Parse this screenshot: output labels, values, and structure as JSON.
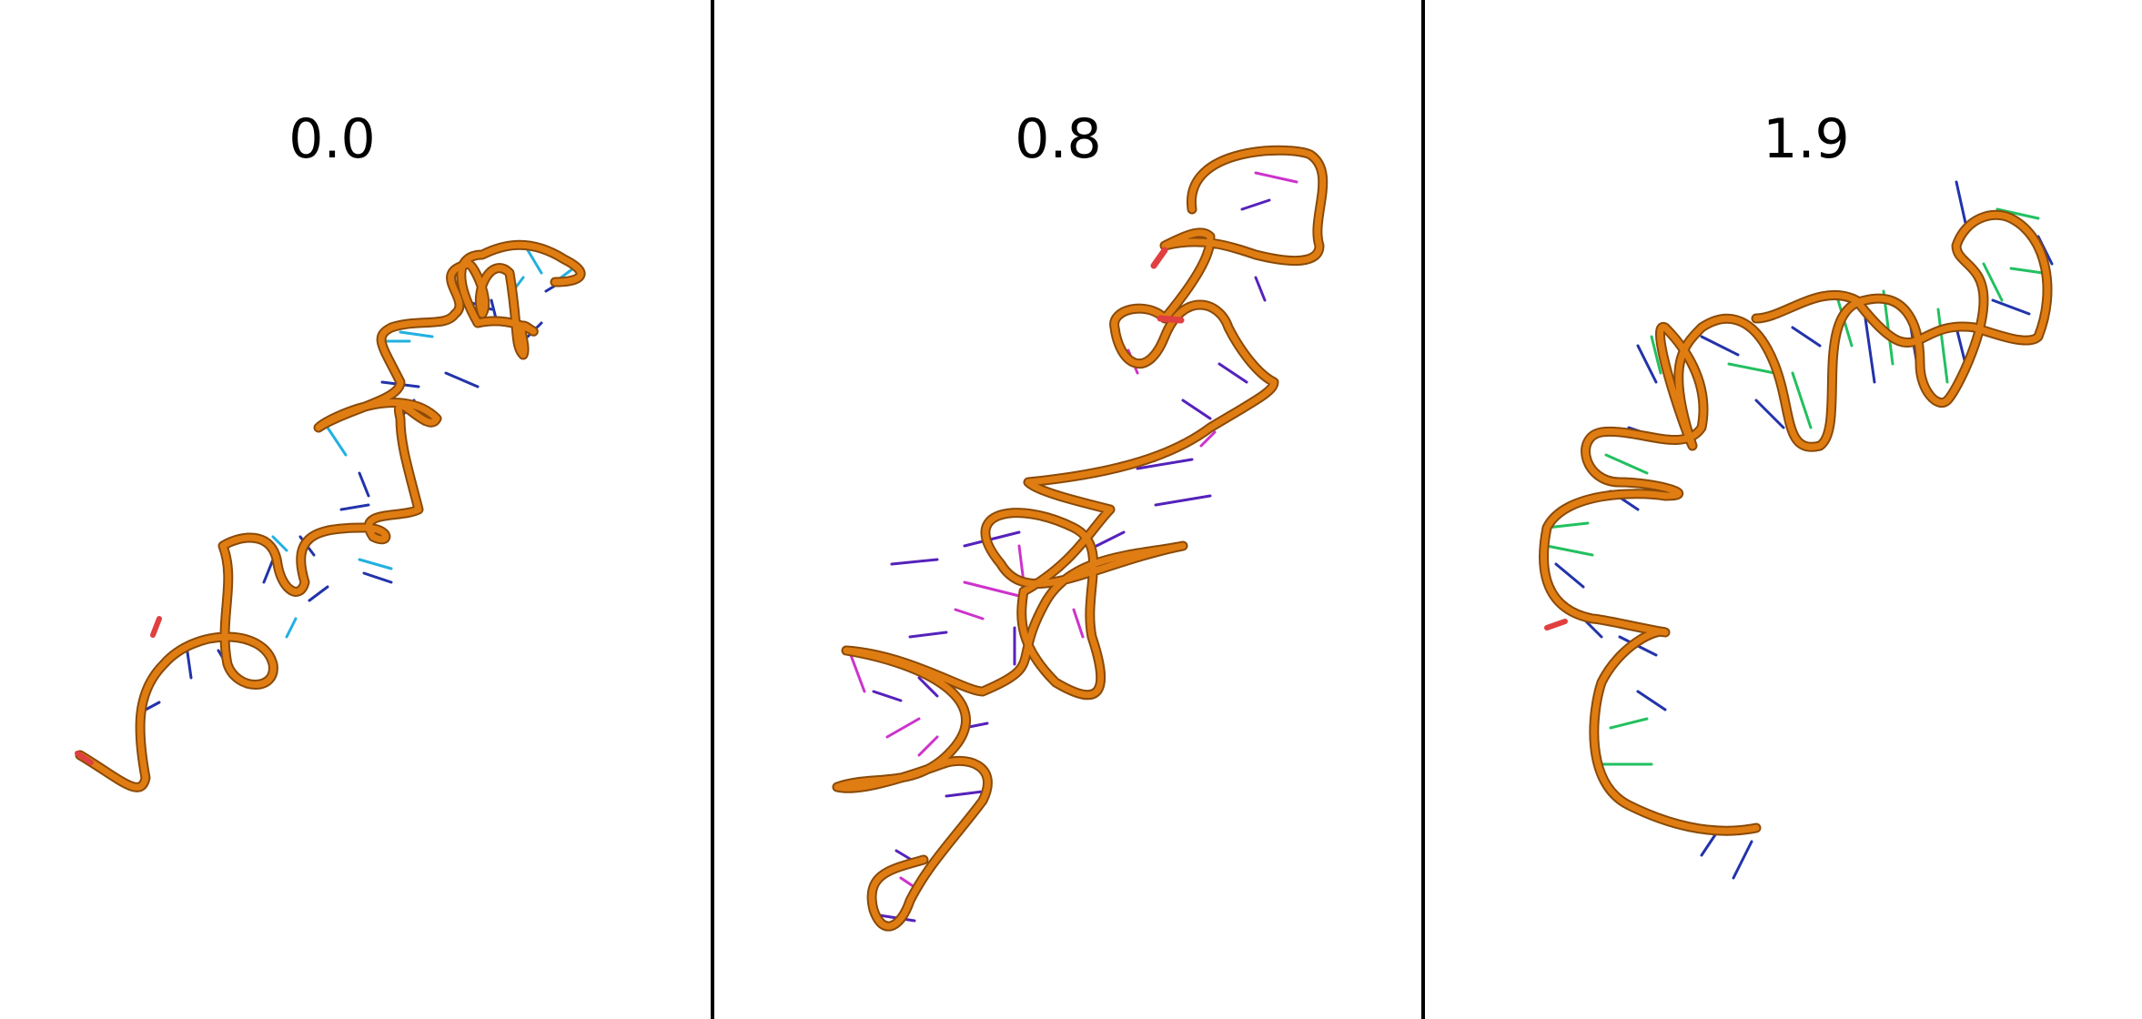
{
  "panels": [
    {
      "label": "0.0"
    },
    {
      "label": "0.8"
    },
    {
      "label": "1.9"
    }
  ],
  "colors": {
    "backbone": "#e07d12",
    "backbone_shadow": "#8a4a08",
    "base_blue": "#2233aa",
    "base_cyan": "#22b0e0",
    "base_magenta": "#cc33cc",
    "base_purple": "#5522bb",
    "base_green": "#22c060",
    "terminus": "#e04040",
    "divider": "#000000"
  }
}
